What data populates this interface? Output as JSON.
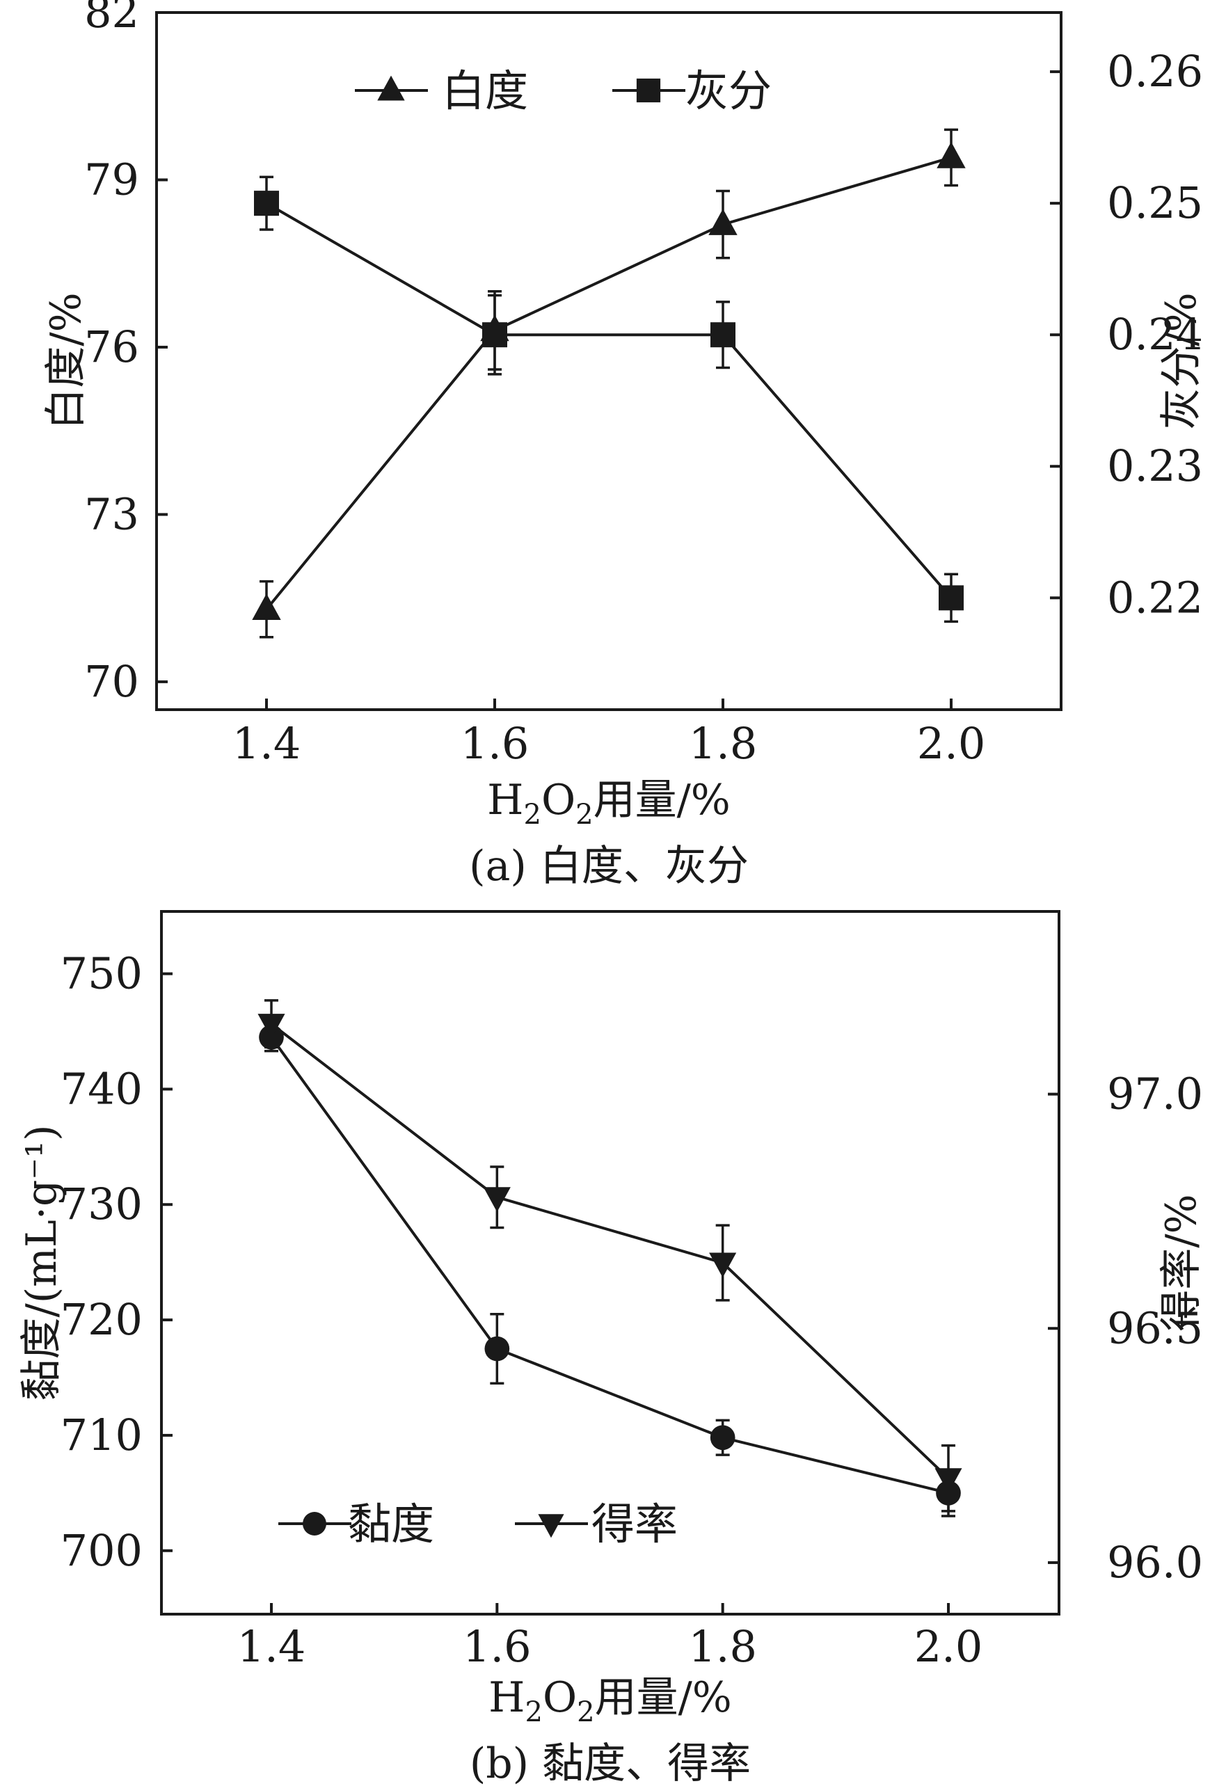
{
  "chart_data": [
    {
      "type": "line",
      "caption": "(a) 白度、灰分",
      "x": [
        1.4,
        1.6,
        1.8,
        2.0
      ],
      "xticks": [
        "1.4",
        "1.6",
        "1.8",
        "2.0"
      ],
      "xlabel": {
        "main": "H",
        "sub1": "2",
        "mid": "O",
        "sub2": "2",
        "rest": "用量/%"
      },
      "left_axis": {
        "label": "白度/%",
        "ylim": [
          69.5,
          82
        ],
        "ticks": [
          "70",
          "73",
          "76",
          "79",
          "82"
        ],
        "tick_values": [
          70,
          73,
          76,
          79,
          82
        ]
      },
      "right_axis": {
        "label": "灰分/%",
        "ylim": [
          0.2115,
          0.2645
        ],
        "ticks": [
          "0.22",
          "0.23",
          "0.24",
          "0.25",
          "0.26"
        ],
        "tick_values": [
          0.22,
          0.23,
          0.24,
          0.25,
          0.26
        ]
      },
      "legend_position": "top",
      "series": [
        {
          "name": "白度",
          "axis": "left",
          "marker": "triangle-up",
          "values": [
            71.3,
            76.3,
            78.2,
            79.4
          ],
          "errors": [
            0.5,
            0.7,
            0.6,
            0.5
          ]
        },
        {
          "name": "灰分",
          "axis": "right",
          "marker": "square",
          "values": [
            0.25,
            0.24,
            0.24,
            0.22
          ],
          "errors": [
            0.002,
            0.003,
            0.0025,
            0.0018
          ]
        }
      ]
    },
    {
      "type": "line",
      "caption": "(b) 黏度、得率",
      "x": [
        1.4,
        1.6,
        1.8,
        2.0
      ],
      "xticks": [
        "1.4",
        "1.6",
        "1.8",
        "2.0"
      ],
      "xlabel": {
        "main": "H",
        "sub1": "2",
        "mid": "O",
        "sub2": "2",
        "rest": "用量/%"
      },
      "left_axis": {
        "label": "黏度/(mL·g⁻¹)",
        "ylim": [
          694.5,
          755.4
        ],
        "ticks": [
          "700",
          "710",
          "720",
          "730",
          "740",
          "750"
        ],
        "tick_values": [
          700,
          710,
          720,
          730,
          740,
          750
        ]
      },
      "right_axis": {
        "label": "得率/%",
        "ylim": [
          95.89,
          97.39
        ],
        "ticks": [
          "96.0",
          "96.5",
          "97.0"
        ],
        "tick_values": [
          96.0,
          96.5,
          97.0
        ]
      },
      "legend_position": "bottom-left",
      "series": [
        {
          "name": "黏度",
          "axis": "left",
          "marker": "circle",
          "values": [
            744.5,
            717.5,
            709.8,
            705.0
          ],
          "errors": [
            1.2,
            3.0,
            1.5,
            2.0
          ]
        },
        {
          "name": "得率",
          "axis": "right",
          "marker": "triangle-down",
          "values": [
            97.15,
            96.78,
            96.64,
            96.18
          ],
          "errors": [
            0.05,
            0.065,
            0.08,
            0.07
          ]
        }
      ]
    }
  ]
}
